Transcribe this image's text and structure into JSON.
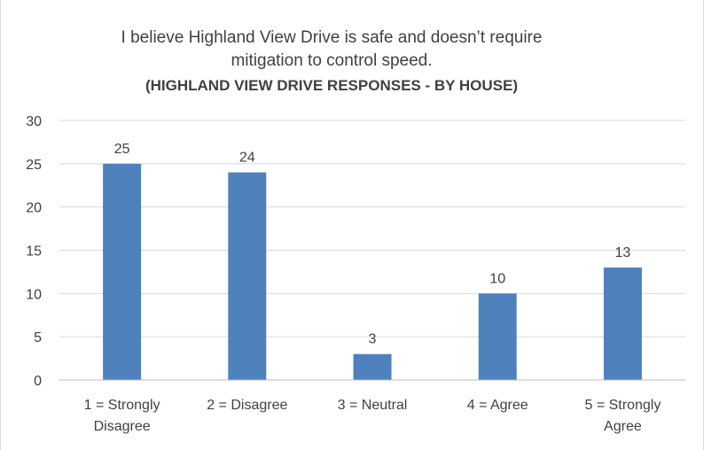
{
  "chart_data": {
    "type": "bar",
    "title_lines": [
      "I believe Highland View Drive is safe and doesn’t require",
      "mitigation to control speed."
    ],
    "subtitle": "(HIGHLAND VIEW DRIVE RESPONSES - BY HOUSE)",
    "categories": [
      [
        "1 = Strongly",
        "Disagree"
      ],
      [
        "2 = Disagree"
      ],
      [
        "3 = Neutral"
      ],
      [
        "4 = Agree"
      ],
      [
        "5 = Strongly",
        "Agree"
      ]
    ],
    "values": [
      25,
      24,
      3,
      10,
      13
    ],
    "ylim": [
      0,
      30
    ],
    "yticks": [
      0,
      5,
      10,
      15,
      20,
      25,
      30
    ],
    "grid": true,
    "bar_color": "#4f81bd"
  }
}
